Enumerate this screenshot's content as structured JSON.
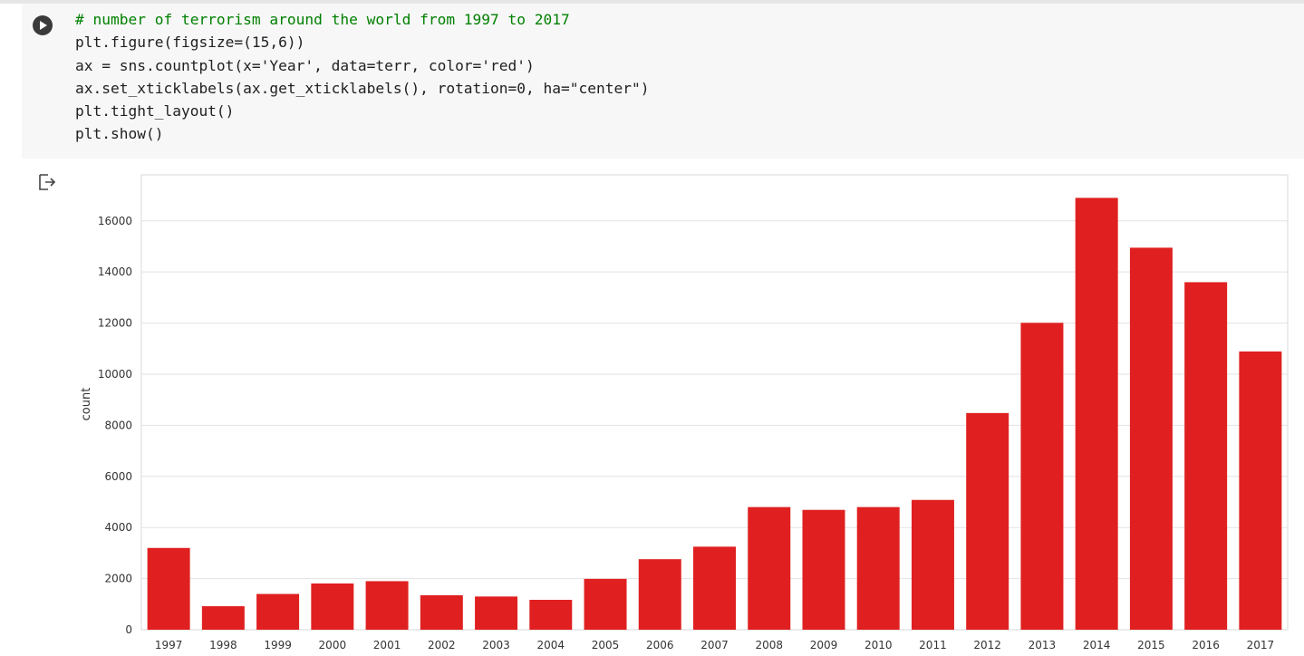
{
  "cell": {
    "code_lines": [
      "# number of terrorism around the world from 1997 to 2017",
      "plt.figure(figsize=(15,6))",
      "ax = sns.countplot(x='Year', data=terr, color='red')",
      "ax.set_xticklabels(ax.get_xticklabels(), rotation=0, ha=\"center\")",
      "plt.tight_layout()",
      "plt.show()"
    ],
    "run_icon": "play-icon",
    "output_icon": "output-arrow-icon"
  },
  "chart_data": {
    "type": "bar",
    "categories": [
      "1997",
      "1998",
      "1999",
      "2000",
      "2001",
      "2002",
      "2003",
      "2004",
      "2005",
      "2006",
      "2007",
      "2008",
      "2009",
      "2010",
      "2011",
      "2012",
      "2013",
      "2014",
      "2015",
      "2016",
      "2017"
    ],
    "values": [
      3200,
      920,
      1400,
      1810,
      1900,
      1350,
      1300,
      1170,
      1990,
      2760,
      3250,
      4800,
      4690,
      4800,
      5080,
      8480,
      12010,
      16900,
      14950,
      13600,
      10890
    ],
    "xlabel": "",
    "ylabel": "count",
    "ylim": [
      0,
      17800
    ],
    "yticks": [
      0,
      2000,
      4000,
      6000,
      8000,
      10000,
      12000,
      14000,
      16000
    ],
    "grid": "horizontal",
    "bar_color": "#e02020"
  }
}
